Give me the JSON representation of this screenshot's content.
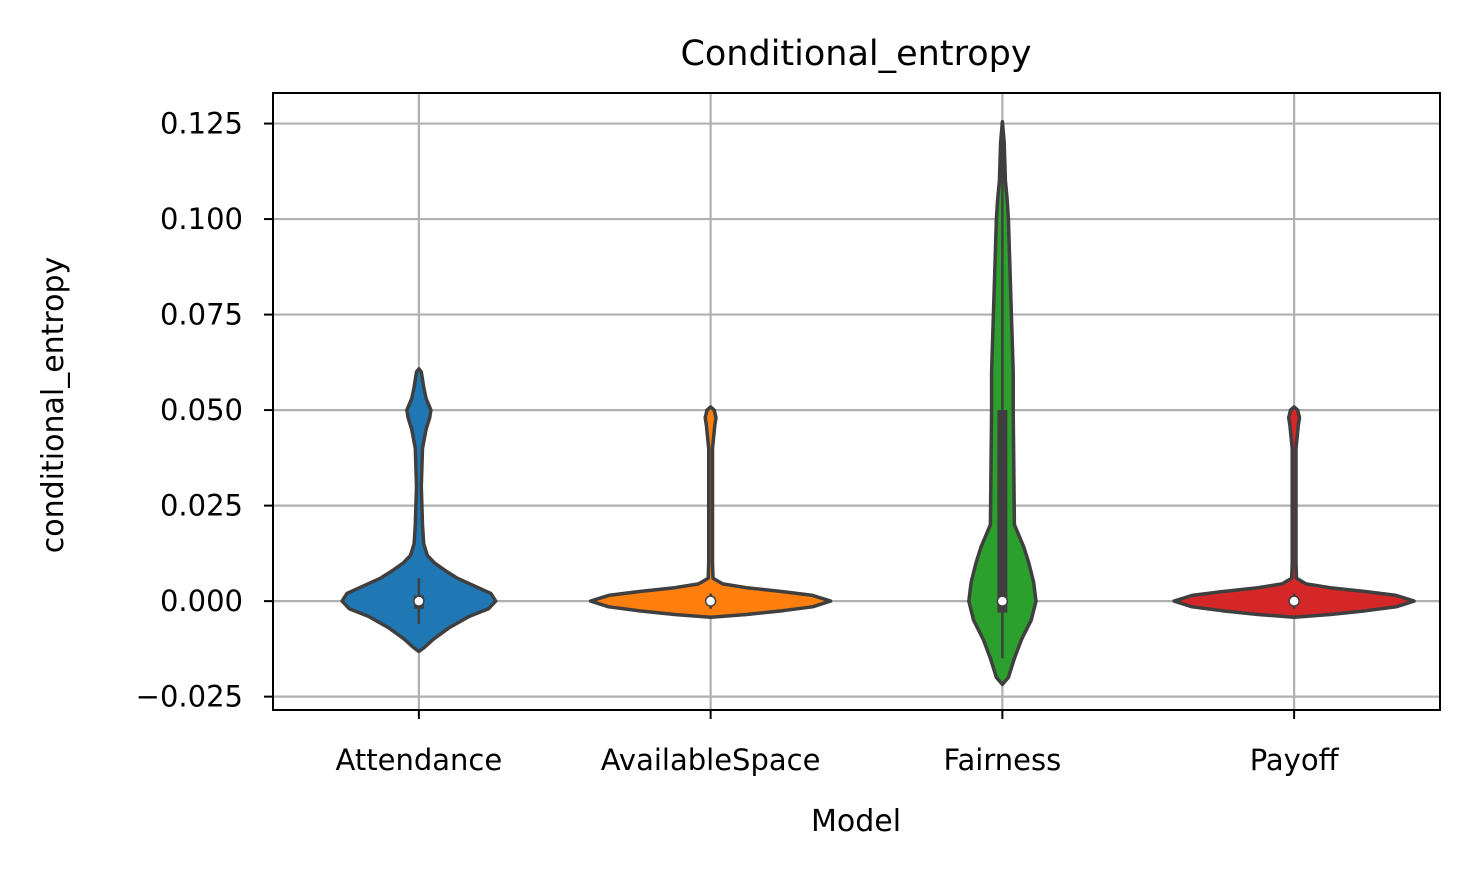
{
  "chart_data": {
    "type": "violin",
    "title": "Conditional_entropy",
    "xlabel": "Model",
    "ylabel": "conditional_entropy",
    "categories": [
      "Attendance",
      "AvailableSpace",
      "Fairness",
      "Payoff"
    ],
    "ylim": [
      -0.0285,
      0.133
    ],
    "yticks": [
      -0.025,
      0.0,
      0.025,
      0.05,
      0.075,
      0.1,
      0.125
    ],
    "ytick_labels": [
      "−0.025",
      "0.000",
      "0.025",
      "0.050",
      "0.075",
      "0.100",
      "0.125"
    ],
    "grid": true,
    "series": [
      {
        "category": "Attendance",
        "color": "#1f77b4",
        "median": 0.0,
        "q1": -0.002,
        "q3": 0.0015,
        "whisker_low": -0.006,
        "whisker_high": 0.006,
        "profile": [
          [
            -0.0132,
            0.0
          ],
          [
            -0.012,
            0.05
          ],
          [
            -0.01,
            0.12
          ],
          [
            -0.007,
            0.25
          ],
          [
            -0.004,
            0.42
          ],
          [
            -0.002,
            0.58
          ],
          [
            0.0,
            0.64
          ],
          [
            0.002,
            0.6
          ],
          [
            0.004,
            0.46
          ],
          [
            0.006,
            0.32
          ],
          [
            0.008,
            0.22
          ],
          [
            0.01,
            0.13
          ],
          [
            0.012,
            0.07
          ],
          [
            0.015,
            0.04
          ],
          [
            0.02,
            0.03
          ],
          [
            0.03,
            0.02
          ],
          [
            0.04,
            0.03
          ],
          [
            0.045,
            0.06
          ],
          [
            0.048,
            0.09
          ],
          [
            0.05,
            0.1
          ],
          [
            0.053,
            0.06
          ],
          [
            0.056,
            0.04
          ],
          [
            0.06,
            0.02
          ],
          [
            0.0608,
            0.0
          ]
        ]
      },
      {
        "category": "AvailableSpace",
        "color": "#ff7f0e",
        "median": 0.0,
        "q1": -0.0005,
        "q3": 0.0005,
        "whisker_low": -0.002,
        "whisker_high": 0.002,
        "profile": [
          [
            -0.0042,
            0.0
          ],
          [
            -0.0035,
            0.3
          ],
          [
            -0.0025,
            0.6
          ],
          [
            -0.0015,
            0.85
          ],
          [
            0.0,
            1.0
          ],
          [
            0.0015,
            0.85
          ],
          [
            0.0025,
            0.6
          ],
          [
            0.0035,
            0.3
          ],
          [
            0.0045,
            0.1
          ],
          [
            0.006,
            0.02
          ],
          [
            0.01,
            0.016
          ],
          [
            0.04,
            0.016
          ],
          [
            0.046,
            0.035
          ],
          [
            0.048,
            0.045
          ],
          [
            0.05,
            0.03
          ],
          [
            0.0508,
            0.0
          ]
        ]
      },
      {
        "category": "Fairness",
        "color": "#2ca02c",
        "median": 0.0,
        "q1": -0.003,
        "q3": 0.05,
        "whisker_low": -0.015,
        "whisker_high": 0.125,
        "profile": [
          [
            -0.0218,
            0.0
          ],
          [
            -0.02,
            0.05
          ],
          [
            -0.015,
            0.1
          ],
          [
            -0.01,
            0.16
          ],
          [
            -0.005,
            0.24
          ],
          [
            0.0,
            0.28
          ],
          [
            0.005,
            0.26
          ],
          [
            0.01,
            0.22
          ],
          [
            0.014,
            0.18
          ],
          [
            0.02,
            0.1
          ],
          [
            0.05,
            0.09
          ],
          [
            0.06,
            0.09
          ],
          [
            0.07,
            0.08
          ],
          [
            0.08,
            0.07
          ],
          [
            0.09,
            0.06
          ],
          [
            0.1,
            0.05
          ],
          [
            0.105,
            0.04
          ],
          [
            0.11,
            0.025
          ],
          [
            0.12,
            0.015
          ],
          [
            0.1255,
            0.0
          ]
        ]
      },
      {
        "category": "Payoff",
        "color": "#d62728",
        "median": 0.0,
        "q1": -0.0005,
        "q3": 0.0005,
        "whisker_low": -0.002,
        "whisker_high": 0.002,
        "profile": [
          [
            -0.0042,
            0.0
          ],
          [
            -0.0035,
            0.3
          ],
          [
            -0.0025,
            0.6
          ],
          [
            -0.0015,
            0.85
          ],
          [
            0.0,
            1.0
          ],
          [
            0.0015,
            0.85
          ],
          [
            0.0025,
            0.6
          ],
          [
            0.0035,
            0.3
          ],
          [
            0.0045,
            0.1
          ],
          [
            0.006,
            0.02
          ],
          [
            0.01,
            0.016
          ],
          [
            0.04,
            0.016
          ],
          [
            0.046,
            0.035
          ],
          [
            0.048,
            0.045
          ],
          [
            0.05,
            0.03
          ],
          [
            0.0508,
            0.0
          ]
        ]
      }
    ]
  }
}
